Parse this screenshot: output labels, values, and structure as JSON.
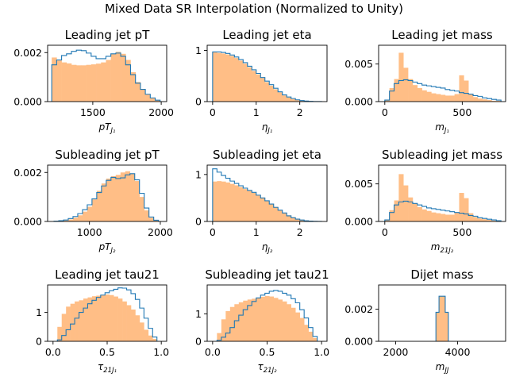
{
  "suptitle": "Mixed Data SR Interpolation (Normalized to Unity)",
  "colors": {
    "filled": "#ffbe86",
    "step": "#1f77b4"
  },
  "chart_data": [
    {
      "type": "histogram",
      "title": "Leading jet pT",
      "xlabel": {
        "main": "pT",
        "sub": "J₁"
      },
      "xlim": [
        1170,
        2040
      ],
      "ylim": [
        0,
        0.0023
      ],
      "xticks": [
        {
          "v": 1500,
          "label": "1500"
        },
        {
          "v": 2000,
          "label": "2000"
        }
      ],
      "yticks": [
        {
          "v": 0,
          "label": "0.000"
        },
        {
          "v": 0.002,
          "label": "0.002"
        }
      ],
      "edges": [
        1200,
        1236,
        1272,
        1308,
        1344,
        1380,
        1416,
        1452,
        1488,
        1524,
        1560,
        1596,
        1632,
        1668,
        1704,
        1740,
        1776,
        1812,
        1848,
        1884,
        1920,
        1956,
        1992
      ],
      "filled": [
        0.0018,
        0.00168,
        0.0016,
        0.00156,
        0.0015,
        0.00148,
        0.00148,
        0.0015,
        0.00152,
        0.00155,
        0.0016,
        0.0017,
        0.00195,
        0.00203,
        0.00195,
        0.0017,
        0.0012,
        0.0008,
        0.0005,
        0.0003,
        0.00015,
        6e-05
      ],
      "step": [
        0.0015,
        0.0017,
        0.00188,
        0.00195,
        0.00205,
        0.0021,
        0.00208,
        0.00198,
        0.00185,
        0.00175,
        0.00175,
        0.00185,
        0.00195,
        0.00198,
        0.00185,
        0.0015,
        0.0011,
        0.00075,
        0.0005,
        0.0003,
        0.00015,
        6e-05
      ]
    },
    {
      "type": "histogram",
      "title": "Leading jet eta",
      "xlabel": {
        "main": "η",
        "sub": "J₁"
      },
      "xlim": [
        -0.125,
        2.625
      ],
      "ylim": [
        0,
        1.1
      ],
      "xticks": [
        {
          "v": 0,
          "label": "0"
        },
        {
          "v": 1,
          "label": "1"
        },
        {
          "v": 2,
          "label": "2"
        }
      ],
      "yticks": [
        {
          "v": 0,
          "label": "0"
        },
        {
          "v": 1,
          "label": "1"
        }
      ],
      "edges": [
        0,
        0.1,
        0.2,
        0.3,
        0.4,
        0.5,
        0.6,
        0.7,
        0.8,
        0.9,
        1.0,
        1.1,
        1.2,
        1.3,
        1.4,
        1.5,
        1.6,
        1.7,
        1.8,
        1.9,
        2.0,
        2.1,
        2.2,
        2.3,
        2.4,
        2.5
      ],
      "filled": [
        0.96,
        0.95,
        0.94,
        0.92,
        0.89,
        0.85,
        0.8,
        0.74,
        0.67,
        0.6,
        0.53,
        0.46,
        0.38,
        0.31,
        0.24,
        0.18,
        0.12,
        0.08,
        0.05,
        0.03,
        0.015,
        0.008,
        0.004,
        0.002,
        0.001
      ],
      "step": [
        0.97,
        0.97,
        0.96,
        0.94,
        0.91,
        0.87,
        0.82,
        0.76,
        0.69,
        0.62,
        0.55,
        0.47,
        0.4,
        0.33,
        0.26,
        0.19,
        0.13,
        0.09,
        0.06,
        0.035,
        0.02,
        0.01,
        0.005,
        0.002,
        0.001
      ]
    },
    {
      "type": "histogram",
      "title": "Leading jet mass",
      "xlabel": {
        "main": "m",
        "sub": "J₁"
      },
      "xlim": [
        -40,
        780
      ],
      "ylim": [
        0,
        0.0075
      ],
      "xticks": [
        {
          "v": 0,
          "label": "0"
        },
        {
          "v": 500,
          "label": "500"
        }
      ],
      "yticks": [
        {
          "v": 0,
          "label": "0.000"
        },
        {
          "v": 0.005,
          "label": "0.005"
        }
      ],
      "edges": [
        0,
        30,
        60,
        90,
        120,
        150,
        180,
        210,
        240,
        270,
        300,
        330,
        360,
        390,
        420,
        450,
        480,
        510,
        540,
        570,
        600,
        630,
        660,
        690,
        720,
        750
      ],
      "filled": [
        0.0002,
        0.0018,
        0.003,
        0.0065,
        0.0045,
        0.003,
        0.0022,
        0.0018,
        0.0015,
        0.0013,
        0.0011,
        0.001,
        0.0009,
        0.0008,
        0.0008,
        0.001,
        0.0035,
        0.0028,
        0.001,
        0.0006,
        0.0004,
        0.0003,
        0.0002,
        0.0001,
        0.0001
      ],
      "step": [
        0.0002,
        0.0014,
        0.0024,
        0.0028,
        0.0029,
        0.0028,
        0.0026,
        0.0024,
        0.0022,
        0.0021,
        0.002,
        0.0019,
        0.0018,
        0.0016,
        0.0015,
        0.0014,
        0.0012,
        0.0011,
        0.001,
        0.0008,
        0.0007,
        0.0005,
        0.0004,
        0.0003,
        0.0002
      ]
    },
    {
      "type": "histogram",
      "title": "Subleading jet pT",
      "xlabel": {
        "main": "pT",
        "sub": "J₂"
      },
      "xlim": [
        410,
        2090
      ],
      "ylim": [
        0,
        0.0023
      ],
      "xticks": [
        {
          "v": 1000,
          "label": "1000"
        },
        {
          "v": 2000,
          "label": "2000"
        }
      ],
      "yticks": [
        {
          "v": 0,
          "label": "0.000"
        },
        {
          "v": 0.002,
          "label": "0.002"
        }
      ],
      "edges": [
        500,
        567,
        634,
        701,
        768,
        835,
        902,
        969,
        1036,
        1103,
        1170,
        1237,
        1304,
        1371,
        1438,
        1505,
        1572,
        1639,
        1706,
        1773,
        1840,
        1907,
        1974
      ],
      "filled": [
        1e-05,
        2e-05,
        4e-05,
        8e-05,
        0.00015,
        0.00025,
        0.0004,
        0.0006,
        0.0009,
        0.00125,
        0.00155,
        0.00175,
        0.00185,
        0.0019,
        0.002,
        0.00205,
        0.00195,
        0.00165,
        0.001,
        0.00045,
        0.00015,
        4e-05
      ],
      "step": [
        1e-05,
        3e-05,
        6e-05,
        0.00012,
        0.0002,
        0.00032,
        0.00048,
        0.00068,
        0.00092,
        0.00118,
        0.00145,
        0.00168,
        0.0018,
        0.00175,
        0.00178,
        0.0019,
        0.00195,
        0.0017,
        0.00115,
        0.00055,
        0.00018,
        5e-05
      ]
    },
    {
      "type": "histogram",
      "title": "Subleading jet eta",
      "xlabel": {
        "main": "η",
        "sub": "J₂"
      },
      "xlim": [
        -0.125,
        2.625
      ],
      "ylim": [
        0,
        1.2
      ],
      "xticks": [
        {
          "v": 0,
          "label": "0"
        },
        {
          "v": 1,
          "label": "1"
        },
        {
          "v": 2,
          "label": "2"
        }
      ],
      "yticks": [
        {
          "v": 0,
          "label": "0"
        },
        {
          "v": 1,
          "label": "1"
        }
      ],
      "edges": [
        0,
        0.1,
        0.2,
        0.3,
        0.4,
        0.5,
        0.6,
        0.7,
        0.8,
        0.9,
        1.0,
        1.1,
        1.2,
        1.3,
        1.4,
        1.5,
        1.6,
        1.7,
        1.8,
        1.9,
        2.0,
        2.1,
        2.2,
        2.3,
        2.4,
        2.5
      ],
      "filled": [
        0.85,
        0.86,
        0.85,
        0.83,
        0.8,
        0.77,
        0.73,
        0.69,
        0.65,
        0.61,
        0.56,
        0.51,
        0.44,
        0.38,
        0.31,
        0.24,
        0.18,
        0.13,
        0.09,
        0.06,
        0.035,
        0.02,
        0.01,
        0.005,
        0.002
      ],
      "step": [
        1.12,
        1.05,
        0.98,
        0.92,
        0.86,
        0.81,
        0.76,
        0.71,
        0.66,
        0.62,
        0.56,
        0.5,
        0.44,
        0.37,
        0.3,
        0.24,
        0.18,
        0.12,
        0.08,
        0.05,
        0.03,
        0.015,
        0.008,
        0.004,
        0.001
      ]
    },
    {
      "type": "histogram",
      "title": "Subleading jet mass",
      "xlabel": {
        "main": "m",
        "sub": "21J₂"
      },
      "xlim": [
        -40,
        780
      ],
      "ylim": [
        0,
        0.0075
      ],
      "xticks": [
        {
          "v": 0,
          "label": "0"
        },
        {
          "v": 500,
          "label": "500"
        }
      ],
      "yticks": [
        {
          "v": 0,
          "label": "0.000"
        },
        {
          "v": 0.005,
          "label": "0.005"
        }
      ],
      "edges": [
        0,
        30,
        60,
        90,
        120,
        150,
        180,
        210,
        240,
        270,
        300,
        330,
        360,
        390,
        420,
        450,
        480,
        510,
        540,
        570,
        600,
        630,
        660,
        690,
        720,
        750
      ],
      "filled": [
        0.0002,
        0.0015,
        0.0028,
        0.0063,
        0.0048,
        0.0032,
        0.0024,
        0.0019,
        0.0016,
        0.0014,
        0.0012,
        0.0011,
        0.001,
        0.0009,
        0.0009,
        0.0012,
        0.0038,
        0.0031,
        0.0011,
        0.0006,
        0.0004,
        0.0003,
        0.0002,
        0.0001,
        0.0001
      ],
      "step": [
        0.0002,
        0.0012,
        0.0022,
        0.0026,
        0.0027,
        0.0026,
        0.0024,
        0.0022,
        0.002,
        0.0018,
        0.0017,
        0.0016,
        0.0015,
        0.0014,
        0.0013,
        0.0012,
        0.0011,
        0.001,
        0.0008,
        0.0007,
        0.0005,
        0.0004,
        0.0003,
        0.0002,
        0.0001
      ]
    },
    {
      "type": "histogram",
      "title": "Leading jet tau21",
      "xlabel": {
        "main": "τ",
        "sub": "21J₁"
      },
      "xlim": [
        -0.05,
        1.05
      ],
      "ylim": [
        0,
        1.95
      ],
      "xticks": [
        {
          "v": 0,
          "label": "0.0"
        },
        {
          "v": 0.5,
          "label": "0.5"
        },
        {
          "v": 1,
          "label": "1.0"
        }
      ],
      "yticks": [
        {
          "v": 0,
          "label": "0"
        },
        {
          "v": 1,
          "label": "1"
        }
      ],
      "edges": [
        0.04,
        0.08,
        0.12,
        0.16,
        0.2,
        0.24,
        0.28,
        0.32,
        0.36,
        0.4,
        0.44,
        0.48,
        0.52,
        0.56,
        0.6,
        0.64,
        0.68,
        0.72,
        0.76,
        0.8,
        0.84,
        0.88,
        0.92,
        0.96
      ],
      "filled": [
        0.5,
        0.95,
        1.2,
        1.3,
        1.38,
        1.42,
        1.48,
        1.52,
        1.56,
        1.58,
        1.6,
        1.62,
        1.6,
        1.55,
        1.48,
        1.38,
        1.25,
        1.1,
        0.9,
        0.65,
        0.4,
        0.2,
        0.08
      ],
      "step": [
        0.05,
        0.2,
        0.4,
        0.6,
        0.8,
        1.0,
        1.15,
        1.3,
        1.42,
        1.52,
        1.6,
        1.68,
        1.75,
        1.8,
        1.85,
        1.84,
        1.78,
        1.65,
        1.45,
        1.15,
        0.8,
        0.45,
        0.15
      ]
    },
    {
      "type": "histogram",
      "title": "Subleading jet tau21",
      "xlabel": {
        "main": "τ",
        "sub": "21J₂"
      },
      "xlim": [
        -0.05,
        1.05
      ],
      "ylim": [
        0,
        2.05
      ],
      "xticks": [
        {
          "v": 0,
          "label": "0.0"
        },
        {
          "v": 0.5,
          "label": "0.5"
        },
        {
          "v": 1,
          "label": "1.0"
        }
      ],
      "yticks": [
        {
          "v": 0,
          "label": "0"
        },
        {
          "v": 1,
          "label": "1"
        }
      ],
      "edges": [
        0.04,
        0.08,
        0.12,
        0.16,
        0.2,
        0.24,
        0.28,
        0.32,
        0.36,
        0.4,
        0.44,
        0.48,
        0.52,
        0.56,
        0.6,
        0.64,
        0.68,
        0.72,
        0.76,
        0.8,
        0.84,
        0.88,
        0.92,
        0.96
      ],
      "filled": [
        0.3,
        0.8,
        1.1,
        1.25,
        1.35,
        1.42,
        1.48,
        1.52,
        1.55,
        1.58,
        1.62,
        1.65,
        1.63,
        1.58,
        1.52,
        1.45,
        1.35,
        1.22,
        1.05,
        0.85,
        0.6,
        0.35,
        0.12
      ],
      "step": [
        0.04,
        0.15,
        0.3,
        0.5,
        0.75,
        0.95,
        1.15,
        1.3,
        1.45,
        1.58,
        1.68,
        1.75,
        1.82,
        1.85,
        1.82,
        1.75,
        1.68,
        1.55,
        1.4,
        1.15,
        0.85,
        0.5,
        0.18
      ]
    },
    {
      "type": "histogram",
      "title": "Dijet mass",
      "xlabel": {
        "main": "m",
        "sub": "JJ"
      },
      "xlim": [
        1450,
        5550
      ],
      "ylim": [
        0,
        0.0035
      ],
      "xticks": [
        {
          "v": 2000,
          "label": "2000"
        },
        {
          "v": 4000,
          "label": "4000"
        }
      ],
      "yticks": [
        {
          "v": 0,
          "label": "0.000"
        },
        {
          "v": 0.002,
          "label": "0.002"
        }
      ],
      "edges": [
        3300,
        3400,
        3500,
        3600,
        3700
      ],
      "filled": [
        0.0018,
        0.0028,
        0.0028,
        0.0018
      ],
      "step": [
        0.0018,
        0.0028,
        0.0028,
        0.0018
      ]
    }
  ]
}
